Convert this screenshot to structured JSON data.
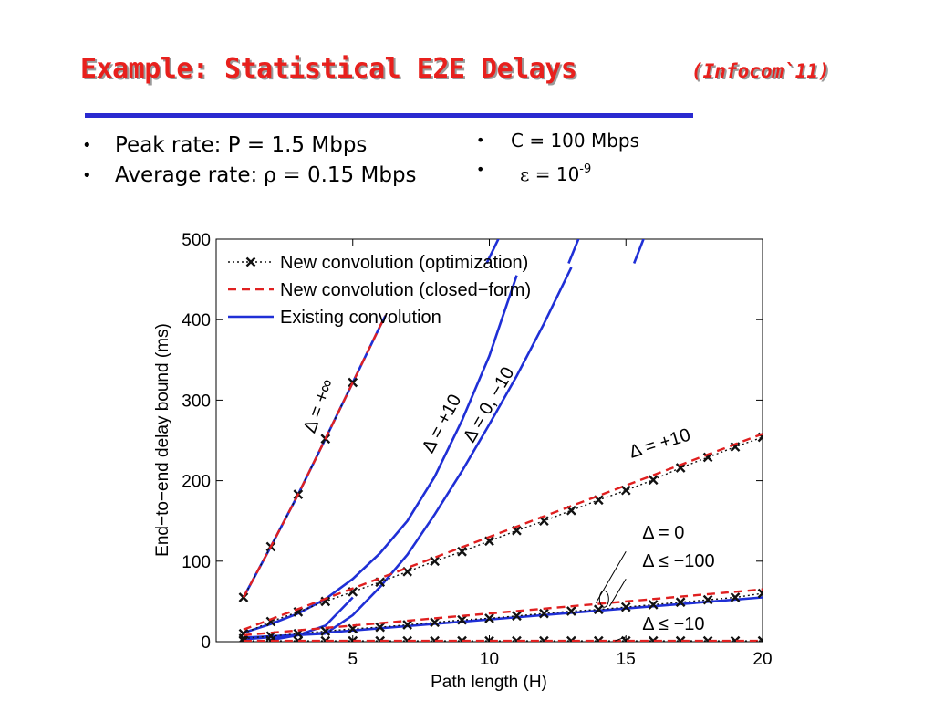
{
  "slide": {
    "title": "Example: Statistical E2E Delays",
    "subtitle": "(Infocom`11)",
    "colors": {
      "title": "#e8201d",
      "rule": "#2a2ad0"
    },
    "left_bullets": [
      {
        "prefix": "Peak rate: ",
        "value": "P = 1.5 Mbps"
      },
      {
        "prefix": "Average rate: ",
        "symbol": "ρ",
        "value": " = 0.15 Mbps"
      }
    ],
    "right_bullets": [
      {
        "value": "C = 100 Mbps"
      },
      {
        "symbol": "ε",
        "value": " = 10",
        "exponent": "-9"
      }
    ]
  },
  "chart_data": {
    "type": "line",
    "xlabel": "Path length (H)",
    "ylabel": "End−to−end delay bound (ms)",
    "xlim": [
      0,
      20
    ],
    "ylim": [
      0,
      500
    ],
    "xticks": [
      5,
      10,
      15,
      20
    ],
    "yticks": [
      0,
      100,
      200,
      300,
      400,
      500
    ],
    "grid": false,
    "legend_position": "top-left",
    "legend": [
      {
        "label": "New convolution (optimization)",
        "style": "dotted-x",
        "color": "#111111"
      },
      {
        "label": "New convolution (closed−form)",
        "style": "dashed",
        "color": "#e02020"
      },
      {
        "label": "Existing convolution",
        "style": "solid",
        "color": "#1f2fd6"
      }
    ],
    "colors": {
      "optimization": "#111111",
      "closed_form": "#e02020",
      "existing": "#1f2fd6"
    },
    "series": [
      {
        "group": "Δ = +∞",
        "kind": "existing",
        "x": [
          1,
          2,
          3,
          4,
          5,
          6,
          6.2
        ],
        "y": [
          55,
          118,
          183,
          252,
          322,
          392,
          405
        ]
      },
      {
        "group": "Δ = +∞",
        "kind": "closed_form",
        "x": [
          1,
          2,
          3,
          4,
          5,
          6,
          6.2
        ],
        "y": [
          55,
          118,
          183,
          252,
          322,
          392,
          405
        ]
      },
      {
        "group": "Δ = +∞",
        "kind": "optimization",
        "x": [
          1,
          2,
          3,
          4,
          5
        ],
        "y": [
          55,
          118,
          183,
          252,
          322
        ]
      },
      {
        "group": "Δ = +∞ (off-scale)",
        "kind": "existing",
        "x": [
          9.9,
          10.9
        ],
        "y": [
          470,
          540
        ]
      },
      {
        "group": "Δ = +10",
        "kind": "existing",
        "x": [
          1,
          2,
          3,
          4,
          5,
          6,
          7,
          8,
          9,
          10,
          11
        ],
        "y": [
          11,
          22,
          35,
          53,
          78,
          110,
          150,
          205,
          275,
          355,
          455
        ]
      },
      {
        "group": "Δ = 0, −10",
        "kind": "existing",
        "x": [
          4,
          5,
          6,
          7,
          8,
          9,
          10,
          11,
          12,
          13
        ],
        "y": [
          10,
          33,
          68,
          108,
          158,
          212,
          270,
          330,
          395,
          465
        ]
      },
      {
        "group": "Δ = 0, −10 (off-scale)",
        "kind": "existing",
        "x": [
          12.9,
          13.8
        ],
        "y": [
          470,
          545
        ]
      },
      {
        "group": "Δ = 0, −10 (off-scale)",
        "kind": "existing",
        "x": [
          15.3,
          16.1
        ],
        "y": [
          470,
          540
        ]
      },
      {
        "group": "Δ = 0, −10",
        "kind": "existing",
        "x": [
          1,
          4
        ],
        "y": [
          5,
          10
        ]
      },
      {
        "group": "Δ = 0, −10 (path)",
        "kind": "existing",
        "x": [
          2,
          3,
          4,
          5
        ],
        "y": [
          2,
          8,
          20,
          55
        ]
      },
      {
        "group": "Δ = +10 (new)",
        "kind": "optimization",
        "x": [
          1,
          2,
          3,
          4,
          5,
          6,
          7,
          8,
          9,
          10,
          11,
          12,
          13,
          14,
          15,
          16,
          17,
          18,
          19,
          20
        ],
        "y": [
          10,
          25,
          37,
          50,
          62,
          74,
          87,
          100,
          112,
          125,
          138,
          150,
          163,
          176,
          188,
          201,
          216,
          229,
          242,
          254
        ]
      },
      {
        "group": "Δ = +10 (new)",
        "kind": "closed_form",
        "x": [
          1,
          20
        ],
        "y": [
          15,
          258
        ]
      },
      {
        "group": "Δ = 0 / Δ ≤ −100",
        "kind": "optimization",
        "x": [
          1,
          2,
          3,
          4,
          5,
          6,
          7,
          8,
          9,
          10,
          11,
          12,
          13,
          14,
          15,
          16,
          17,
          18,
          19,
          20
        ],
        "y": [
          4,
          7,
          10,
          13,
          16,
          18,
          21,
          24,
          27,
          29,
          32,
          35,
          38,
          40,
          43,
          46,
          49,
          52,
          55,
          60
        ]
      },
      {
        "group": "Δ = 0 / Δ ≤ −100",
        "kind": "closed_form",
        "x": [
          1,
          20
        ],
        "y": [
          8,
          65
        ]
      },
      {
        "group": "Δ = 0 / Δ ≤ −100",
        "kind": "existing",
        "x": [
          1,
          20
        ],
        "y": [
          3,
          55
        ]
      },
      {
        "group": "Δ ≤ −10",
        "kind": "optimization",
        "x": [
          1,
          2,
          3,
          4,
          5,
          6,
          7,
          8,
          9,
          10,
          11,
          12,
          13,
          14,
          15,
          16,
          17,
          18,
          19,
          20
        ],
        "y": [
          1,
          1,
          1,
          1,
          1,
          1,
          1,
          1,
          1,
          1,
          1,
          1,
          1,
          1,
          1,
          1,
          1,
          1,
          1,
          1
        ]
      },
      {
        "group": "Δ ≤ −10",
        "kind": "closed_form",
        "x": [
          1,
          20
        ],
        "y": [
          1,
          1
        ]
      }
    ],
    "annotations": [
      {
        "text": "Δ = +∞",
        "x": 3.6,
        "y": 258,
        "angle": -70
      },
      {
        "text": "Δ = +10",
        "x": 7.9,
        "y": 233,
        "angle": -62
      },
      {
        "text": "Δ = 0, −10",
        "x": 9.4,
        "y": 246,
        "angle": -60
      },
      {
        "text": "Δ = +10",
        "x": 15.2,
        "y": 228,
        "angle": -17
      },
      {
        "text": "Δ = 0",
        "x": 15.6,
        "y": 128,
        "angle": 0
      },
      {
        "text": "Δ ≤ −100",
        "x": 15.6,
        "y": 93,
        "angle": 0
      },
      {
        "text": "Δ ≤ −10",
        "x": 15.6,
        "y": 15,
        "angle": 0
      }
    ]
  }
}
